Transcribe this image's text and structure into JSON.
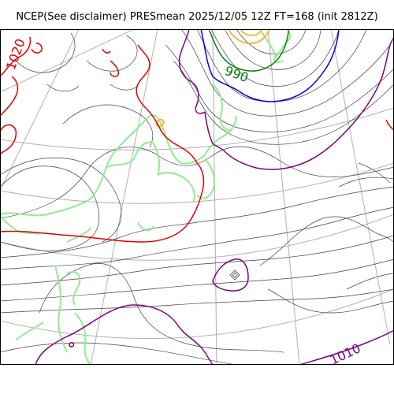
{
  "title": "NCEP(See disclaimer) PRESmean 2025/12/05 12Z FT=168 (init 2812Z)",
  "contour_labels": {
    "p1020": "1020",
    "p990": "990",
    "p1010": "1010"
  },
  "colors": {
    "isobar_1020": "#e00000",
    "isobar_990": "#0a7f0a",
    "isobar_1010": "#800080",
    "isobar_1000": "#0000e0",
    "coastline": "#90ee90",
    "graticule": "#b0b0b0",
    "thin_isobar": "#404040",
    "low_center": "#ffa500"
  }
}
